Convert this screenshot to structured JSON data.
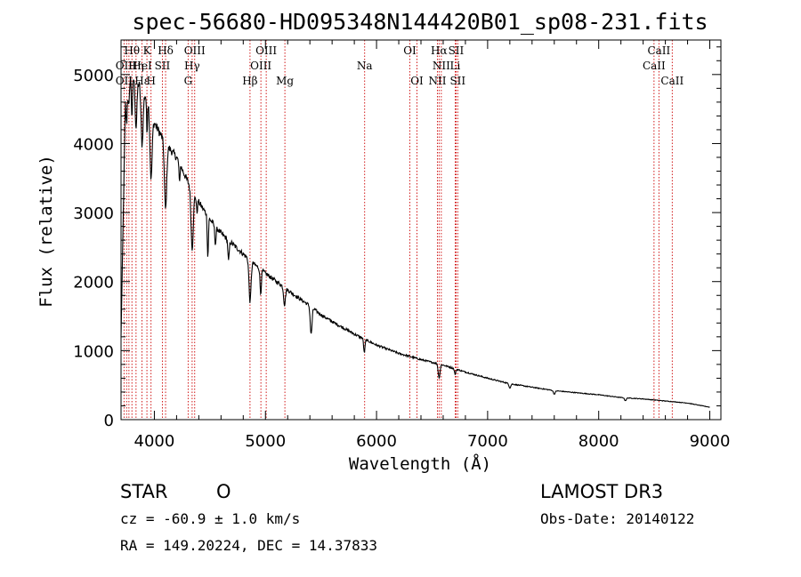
{
  "chart_data": {
    "type": "line",
    "title": "spec-56680-HD095348N144420B01_sp08-231.fits",
    "xlabel": "Wavelength (Å)",
    "ylabel": "Flux (relative)",
    "xlim": [
      3700,
      9100
    ],
    "ylim": [
      0,
      5500
    ],
    "xticks": [
      4000,
      5000,
      6000,
      7000,
      8000,
      9000
    ],
    "yticks": [
      0,
      1000,
      2000,
      3000,
      4000,
      5000
    ],
    "spectrum": {
      "continuum": [
        [
          3700,
          1200
        ],
        [
          3740,
          4700
        ],
        [
          3780,
          5050
        ],
        [
          3850,
          4900
        ],
        [
          3950,
          4600
        ],
        [
          4000,
          4300
        ],
        [
          4100,
          4000
        ],
        [
          4200,
          3800
        ],
        [
          4300,
          3450
        ],
        [
          4400,
          3150
        ],
        [
          4500,
          2900
        ],
        [
          4600,
          2700
        ],
        [
          4700,
          2550
        ],
        [
          4800,
          2400
        ],
        [
          4900,
          2250
        ],
        [
          5000,
          2120
        ],
        [
          5100,
          2000
        ],
        [
          5200,
          1880
        ],
        [
          5300,
          1760
        ],
        [
          5400,
          1650
        ],
        [
          5500,
          1520
        ],
        [
          5600,
          1420
        ],
        [
          5700,
          1330
        ],
        [
          5800,
          1240
        ],
        [
          5900,
          1160
        ],
        [
          6000,
          1080
        ],
        [
          6200,
          960
        ],
        [
          6400,
          870
        ],
        [
          6600,
          790
        ],
        [
          6800,
          690
        ],
        [
          7000,
          600
        ],
        [
          7200,
          520
        ],
        [
          7400,
          470
        ],
        [
          7600,
          420
        ],
        [
          7800,
          390
        ],
        [
          8000,
          360
        ],
        [
          8200,
          320
        ],
        [
          8400,
          300
        ],
        [
          8600,
          270
        ],
        [
          8800,
          240
        ],
        [
          9000,
          180
        ]
      ],
      "absorption": [
        [
          3750,
          500,
          6
        ],
        [
          3771,
          450,
          6
        ],
        [
          3798,
          600,
          6
        ],
        [
          3835,
          700,
          8
        ],
        [
          3889,
          800,
          9
        ],
        [
          3933,
          500,
          4
        ],
        [
          3970,
          1000,
          10
        ],
        [
          4101,
          950,
          10
        ],
        [
          4226,
          300,
          4
        ],
        [
          4340,
          850,
          10
        ],
        [
          4383,
          200,
          5
        ],
        [
          4481,
          600,
          5
        ],
        [
          4550,
          250,
          6
        ],
        [
          4668,
          300,
          6
        ],
        [
          4861,
          600,
          9
        ],
        [
          4957,
          350,
          6
        ],
        [
          5172,
          250,
          8
        ],
        [
          5411,
          400,
          8
        ],
        [
          5890,
          200,
          6
        ],
        [
          6563,
          200,
          8
        ],
        [
          6708,
          80,
          6
        ],
        [
          7200,
          60,
          8
        ],
        [
          7600,
          50,
          8
        ],
        [
          8240,
          40,
          8
        ]
      ]
    },
    "spectral_lines": [
      {
        "label": "Hθ",
        "wavelength": 3798,
        "row": 1
      },
      {
        "label": "OII",
        "wavelength": 3727,
        "row": 2
      },
      {
        "label": "Hη",
        "wavelength": 3835,
        "row": 2
      },
      {
        "label": "OII",
        "wavelength": 3727,
        "row": 3
      },
      {
        "label": "Hε",
        "wavelength": 3889,
        "row": 3
      },
      {
        "label": "H",
        "wavelength": 3970,
        "row": 3
      },
      {
        "label": "HeI",
        "wavelength": 3889,
        "row": 2
      },
      {
        "label": "K",
        "wavelength": 3933,
        "row": 1
      },
      {
        "label": "SII",
        "wavelength": 4072,
        "row": 2
      },
      {
        "label": "Hδ",
        "wavelength": 4101,
        "row": 1
      },
      {
        "label": "OIII",
        "wavelength": 4363,
        "row": 1
      },
      {
        "label": "Hγ",
        "wavelength": 4340,
        "row": 2
      },
      {
        "label": "G",
        "wavelength": 4304,
        "row": 3
      },
      {
        "label": "Hβ",
        "wavelength": 4861,
        "row": 3
      },
      {
        "label": "OIII",
        "wavelength": 5007,
        "row": 1
      },
      {
        "label": "OIII",
        "wavelength": 4959,
        "row": 2
      },
      {
        "label": "Mg",
        "wavelength": 5175,
        "row": 3
      },
      {
        "label": "Na",
        "wavelength": 5893,
        "row": 2
      },
      {
        "label": "OI",
        "wavelength": 6300,
        "row": 1
      },
      {
        "label": "OI",
        "wavelength": 6364,
        "row": 3
      },
      {
        "label": "Hα",
        "wavelength": 6563,
        "row": 1
      },
      {
        "label": "SII",
        "wavelength": 6716,
        "row": 1
      },
      {
        "label": "NII",
        "wavelength": 6583,
        "row": 2
      },
      {
        "label": "Li",
        "wavelength": 6708,
        "row": 2
      },
      {
        "label": "NII",
        "wavelength": 6548,
        "row": 3
      },
      {
        "label": "SII",
        "wavelength": 6731,
        "row": 3
      },
      {
        "label": "CaII",
        "wavelength": 8542,
        "row": 1
      },
      {
        "label": "CaII",
        "wavelength": 8498,
        "row": 2
      },
      {
        "label": "CaII",
        "wavelength": 8662,
        "row": 3
      }
    ],
    "line_markers": [
      3727,
      3750,
      3771,
      3798,
      3835,
      3889,
      3933,
      3970,
      4072,
      4101,
      4304,
      4340,
      4363,
      4861,
      4959,
      5007,
      5175,
      5893,
      6300,
      6364,
      6548,
      6563,
      6583,
      6708,
      6716,
      6731,
      8498,
      8542,
      8662
    ],
    "colors": {
      "spectrum": "#000000",
      "line_markers": "#cc0000",
      "axes": "#000000",
      "background": "#ffffff"
    }
  },
  "info": {
    "object_class": "STAR",
    "subclass": "O",
    "survey": "LAMOST DR3",
    "redshift": "cz = -60.9 ± 1.0 km/s",
    "obs_date": "Obs-Date: 20140122",
    "coordinates": "RA = 149.20224, DEC =  14.37833"
  }
}
